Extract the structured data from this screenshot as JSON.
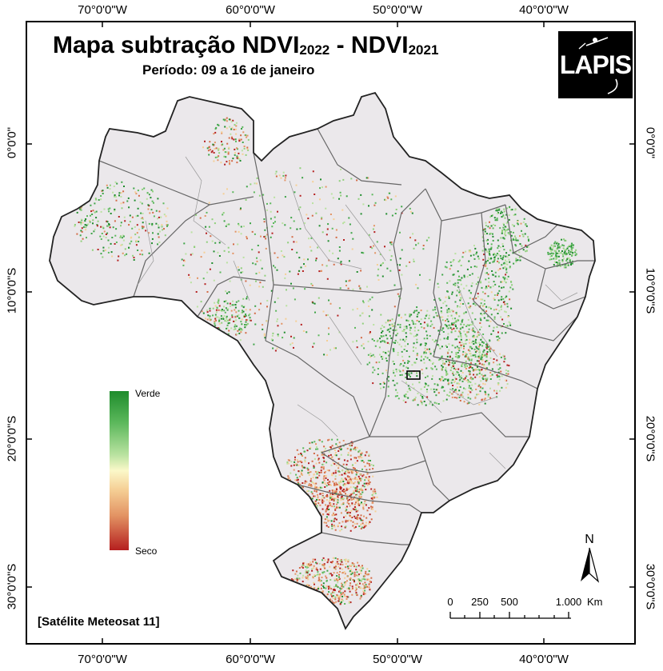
{
  "map": {
    "title_main": "Mapa subtração NDVI",
    "title_year1": "2022",
    "title_sep": " - NDVI",
    "title_year2": "2021",
    "subtitle": "Período: 09 a 16 de janeiro",
    "logo_text": "LAPIS",
    "source": "[Satélite Meteosat 11]",
    "legend": {
      "top_label": "Verde",
      "bottom_label": "Seco",
      "colors": [
        "#1e8c2c",
        "#5cb85c",
        "#b9e2a0",
        "#fbf8c9",
        "#f5cf95",
        "#e39464",
        "#b51f1f"
      ]
    },
    "north_label": "N",
    "scale": {
      "ticks": [
        "0",
        "250",
        "500",
        "1.000"
      ],
      "unit": "Km"
    },
    "grid": {
      "longitudes": [
        "70°0'0\"W",
        "60°0'0\"W",
        "50°0'0\"W",
        "40°0'0\"W"
      ],
      "latitudes": [
        "0°0'0\"",
        "10°0'0\"S",
        "20°0'0\"S",
        "30°0'0\"S"
      ]
    },
    "colors": {
      "land": "#ebe8eb",
      "border": "#555555",
      "water": "#cfeef2"
    }
  }
}
